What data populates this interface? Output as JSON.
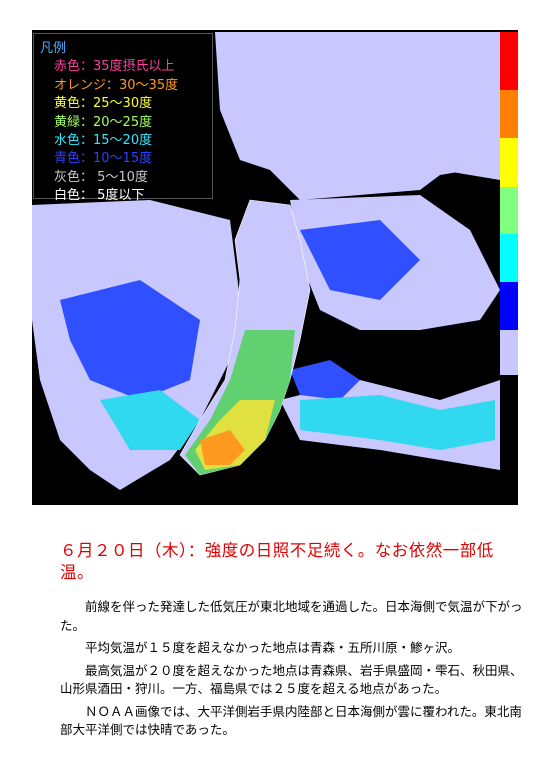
{
  "legend": {
    "title": "凡例",
    "title_color": "#4ab0ff",
    "items": [
      {
        "text": "赤色：35度摂氏以上",
        "color": "#ff3ca0"
      },
      {
        "text": "オレンジ：30～35度",
        "color": "#ff9a20"
      },
      {
        "text": "黄色：25～30度",
        "color": "#ffff30"
      },
      {
        "text": "黄緑：20～25度",
        "color": "#a0ff60"
      },
      {
        "text": "水色：15～20度",
        "color": "#30e8ff"
      },
      {
        "text": "青色：10～15度",
        "color": "#3040ff"
      },
      {
        "text": "灰色： 5～10度",
        "color": "#c8c8c8"
      },
      {
        "text": "白色： 5度以下",
        "color": "#ffffff"
      }
    ]
  },
  "heading": "６月２０日（木）：強度の日照不足続く。なお依然一部低温。",
  "paragraphs": [
    "前線を伴った発達した低気圧が東北地域を通過した。日本海側で気温が下がった。",
    "平均気温が１５度を超えなかった地点は青森・五所川原・鯵ヶ沢。",
    "最高気温が２０度を超えなかった地点は青森県、岩手県盛岡・雫石、秋田県、山形県酒田・狩川。一方、福島県では２５度を超える地点があった。",
    "ＮＯＡＡ画像では、大平洋側岩手県内陸部と日本海側が雲に覆われた。東北南部大平洋側では快晴であった。"
  ]
}
